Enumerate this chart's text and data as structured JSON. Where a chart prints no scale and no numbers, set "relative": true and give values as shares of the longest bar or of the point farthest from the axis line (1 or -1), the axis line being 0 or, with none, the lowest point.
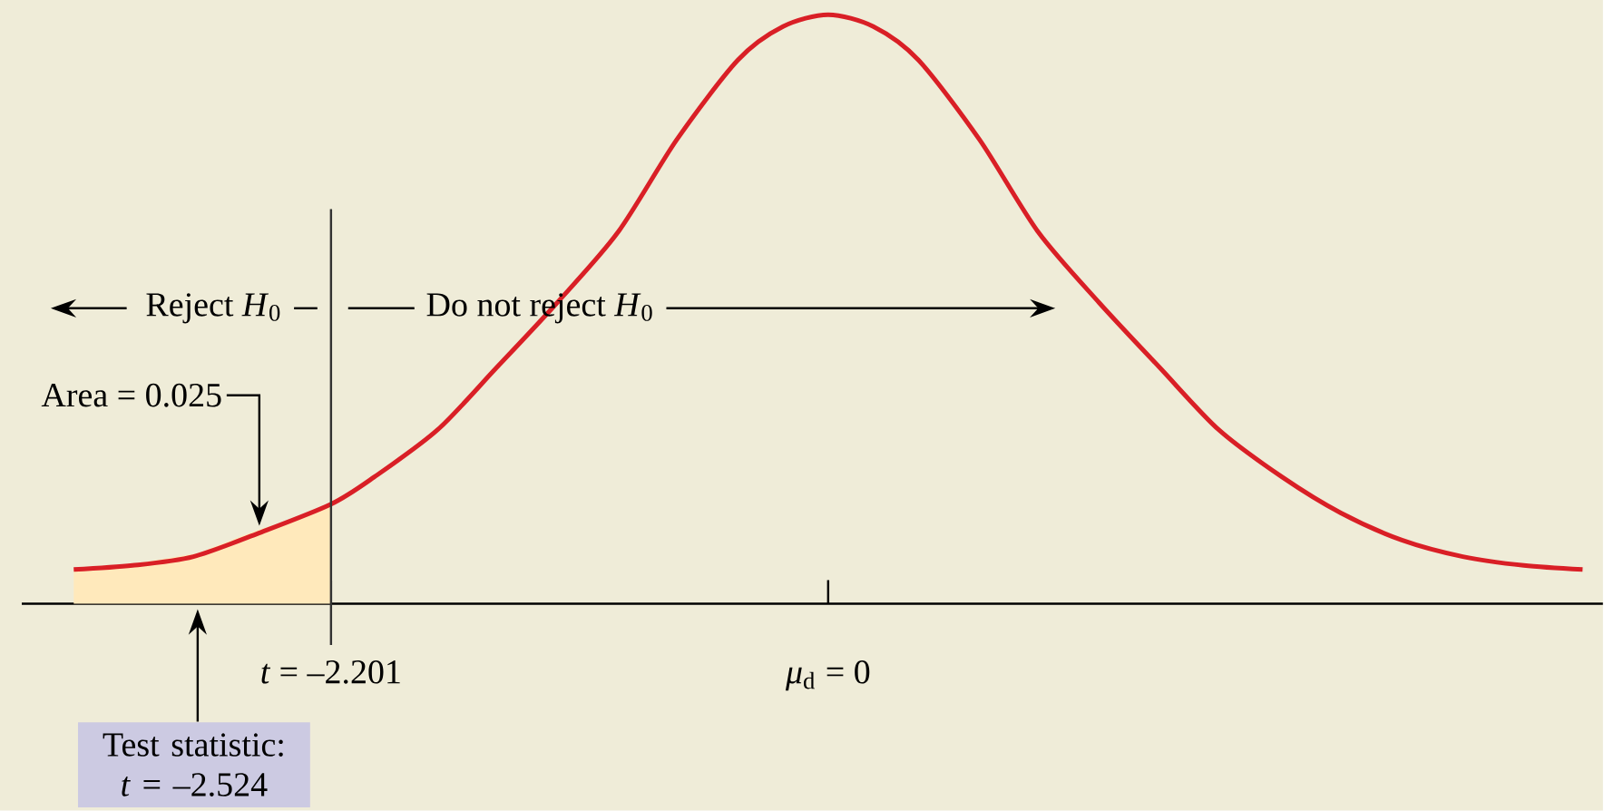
{
  "chart_data": {
    "type": "line",
    "relative": true,
    "xlim": [
      -3.57,
      3.43
    ],
    "xticks": [
      {
        "value": -2.201,
        "label": "*t* = –2.201"
      },
      {
        "value": 0,
        "label": "*μ*$_{d}$ = 0"
      }
    ],
    "series": [
      {
        "type": "area",
        "color": "#ffe9bb",
        "x": [
          -3.34,
          -3.07,
          -2.79,
          -2.52,
          -2.35,
          -2.201
        ],
        "values": [
          0.058,
          0.068,
          0.086,
          0.126,
          0.145,
          0.169
        ]
      },
      {
        "color": "#d91f26",
        "x": [
          -3.34,
          -3.08,
          -2.81,
          -2.52,
          -2.201,
          -2.01,
          -1.73,
          -1.47,
          -1.2,
          -0.93,
          -0.67,
          -0.4,
          -0.2,
          0,
          0.2,
          0.4,
          0.67,
          0.93,
          1.2,
          1.47,
          1.73,
          2.01,
          2.27,
          2.54,
          2.81,
          3.08,
          3.34
        ],
        "values": [
          0.058,
          0.065,
          0.08,
          0.12,
          0.169,
          0.215,
          0.295,
          0.4,
          0.511,
          0.631,
          0.788,
          0.923,
          0.98,
          1,
          0.98,
          0.923,
          0.788,
          0.631,
          0.511,
          0.4,
          0.295,
          0.215,
          0.154,
          0.108,
          0.08,
          0.065,
          0.058
        ]
      }
    ],
    "ref_lines": [
      {
        "axis": "x",
        "value": -2.201,
        "color": "#333333"
      }
    ],
    "annotations": [
      "Reject *H*$_{0}$",
      "Do not reject *H*$_{0}$",
      "Area = 0.025",
      "Test statistic: *t* = –2.524"
    ]
  }
}
